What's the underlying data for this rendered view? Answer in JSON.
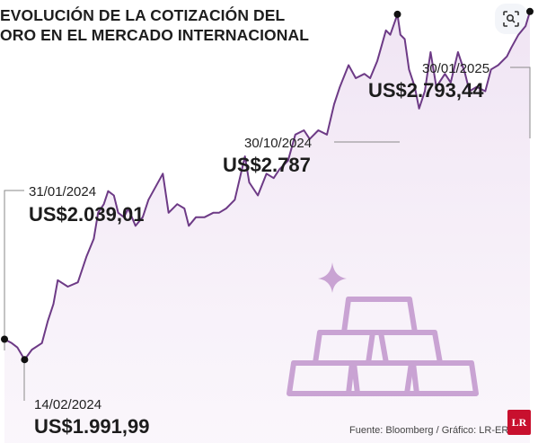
{
  "title_lines": [
    "EVOLUCIÓN DE LA COTIZACIÓN DEL",
    "ORO EN EL MERCADO INTERNACIONAL"
  ],
  "source": "Fuente: Bloomberg / Gráfico: LR-ER",
  "logo_text": "LR",
  "lens_icon": "lens-search-icon",
  "colors": {
    "line": "#6d3a86",
    "fill": "#ead9ef",
    "marker": "#111111",
    "gold_bars_icon": "#c9a3d3"
  },
  "chart_data": {
    "type": "area",
    "title": "EVOLUCIÓN DE LA COTIZACIÓN DEL ORO EN EL MERCADO INTERNACIONAL",
    "xlabel": "",
    "ylabel": "",
    "grid": false,
    "x_range": [
      "2024-01-31",
      "2025-01-30"
    ],
    "ylim": [
      1800,
      2820
    ],
    "series": [
      {
        "x": [
          "2024-01-31",
          "2024-02-05",
          "2024-02-09",
          "2024-02-14",
          "2024-02-19",
          "2024-02-26",
          "2024-03-01",
          "2024-03-05",
          "2024-03-08",
          "2024-03-15",
          "2024-03-22",
          "2024-03-28",
          "2024-04-02",
          "2024-04-05",
          "2024-04-09",
          "2024-04-12",
          "2024-04-16",
          "2024-04-19",
          "2024-04-23",
          "2024-04-26",
          "2024-05-01",
          "2024-05-06",
          "2024-05-10",
          "2024-05-15",
          "2024-05-20",
          "2024-05-24",
          "2024-05-30",
          "2024-06-04",
          "2024-06-07",
          "2024-06-12",
          "2024-06-18",
          "2024-06-24",
          "2024-06-28",
          "2024-07-03",
          "2024-07-09",
          "2024-07-16",
          "2024-07-19",
          "2024-07-25",
          "2024-07-31",
          "2024-08-05",
          "2024-08-09",
          "2024-08-15",
          "2024-08-20",
          "2024-08-26",
          "2024-08-30",
          "2024-09-05",
          "2024-09-11",
          "2024-09-16",
          "2024-09-20",
          "2024-09-26",
          "2024-10-01",
          "2024-10-07",
          "2024-10-11",
          "2024-10-16",
          "2024-10-22",
          "2024-10-25",
          "2024-10-30",
          "2024-11-01",
          "2024-11-04",
          "2024-11-07",
          "2024-11-11",
          "2024-11-14",
          "2024-11-18",
          "2024-11-22",
          "2024-11-26",
          "2024-12-02",
          "2024-12-06",
          "2024-12-11",
          "2024-12-16",
          "2024-12-19",
          "2024-12-24",
          "2024-12-30",
          "2025-01-03",
          "2025-01-08",
          "2025-01-14",
          "2025-01-17",
          "2025-01-22",
          "2025-01-27",
          "2025-01-30"
        ],
        "values": [
          2039.01,
          2030,
          2020,
          1991.99,
          2015,
          2030,
          2080,
          2120,
          2175,
          2160,
          2170,
          2230,
          2270,
          2330,
          2350,
          2380,
          2370,
          2330,
          2320,
          2340,
          2300,
          2320,
          2360,
          2390,
          2420,
          2330,
          2350,
          2340,
          2300,
          2320,
          2320,
          2330,
          2330,
          2340,
          2360,
          2460,
          2400,
          2370,
          2420,
          2410,
          2430,
          2450,
          2510,
          2520,
          2500,
          2520,
          2510,
          2580,
          2620,
          2670,
          2640,
          2650,
          2640,
          2680,
          2750,
          2740,
          2787,
          2740,
          2730,
          2660,
          2620,
          2570,
          2610,
          2700,
          2620,
          2650,
          2630,
          2700,
          2650,
          2610,
          2620,
          2610,
          2660,
          2670,
          2690,
          2710,
          2740,
          2760,
          2793.44
        ]
      }
    ],
    "annotations": [
      {
        "date": "31/01/2024",
        "value": "US$2.039,01"
      },
      {
        "date": "14/02/2024",
        "value": "US$1.991,99"
      },
      {
        "date": "30/10/2024",
        "value": "US$2.787"
      },
      {
        "date": "30/01/2025",
        "value": "US$2.793,44"
      }
    ]
  }
}
